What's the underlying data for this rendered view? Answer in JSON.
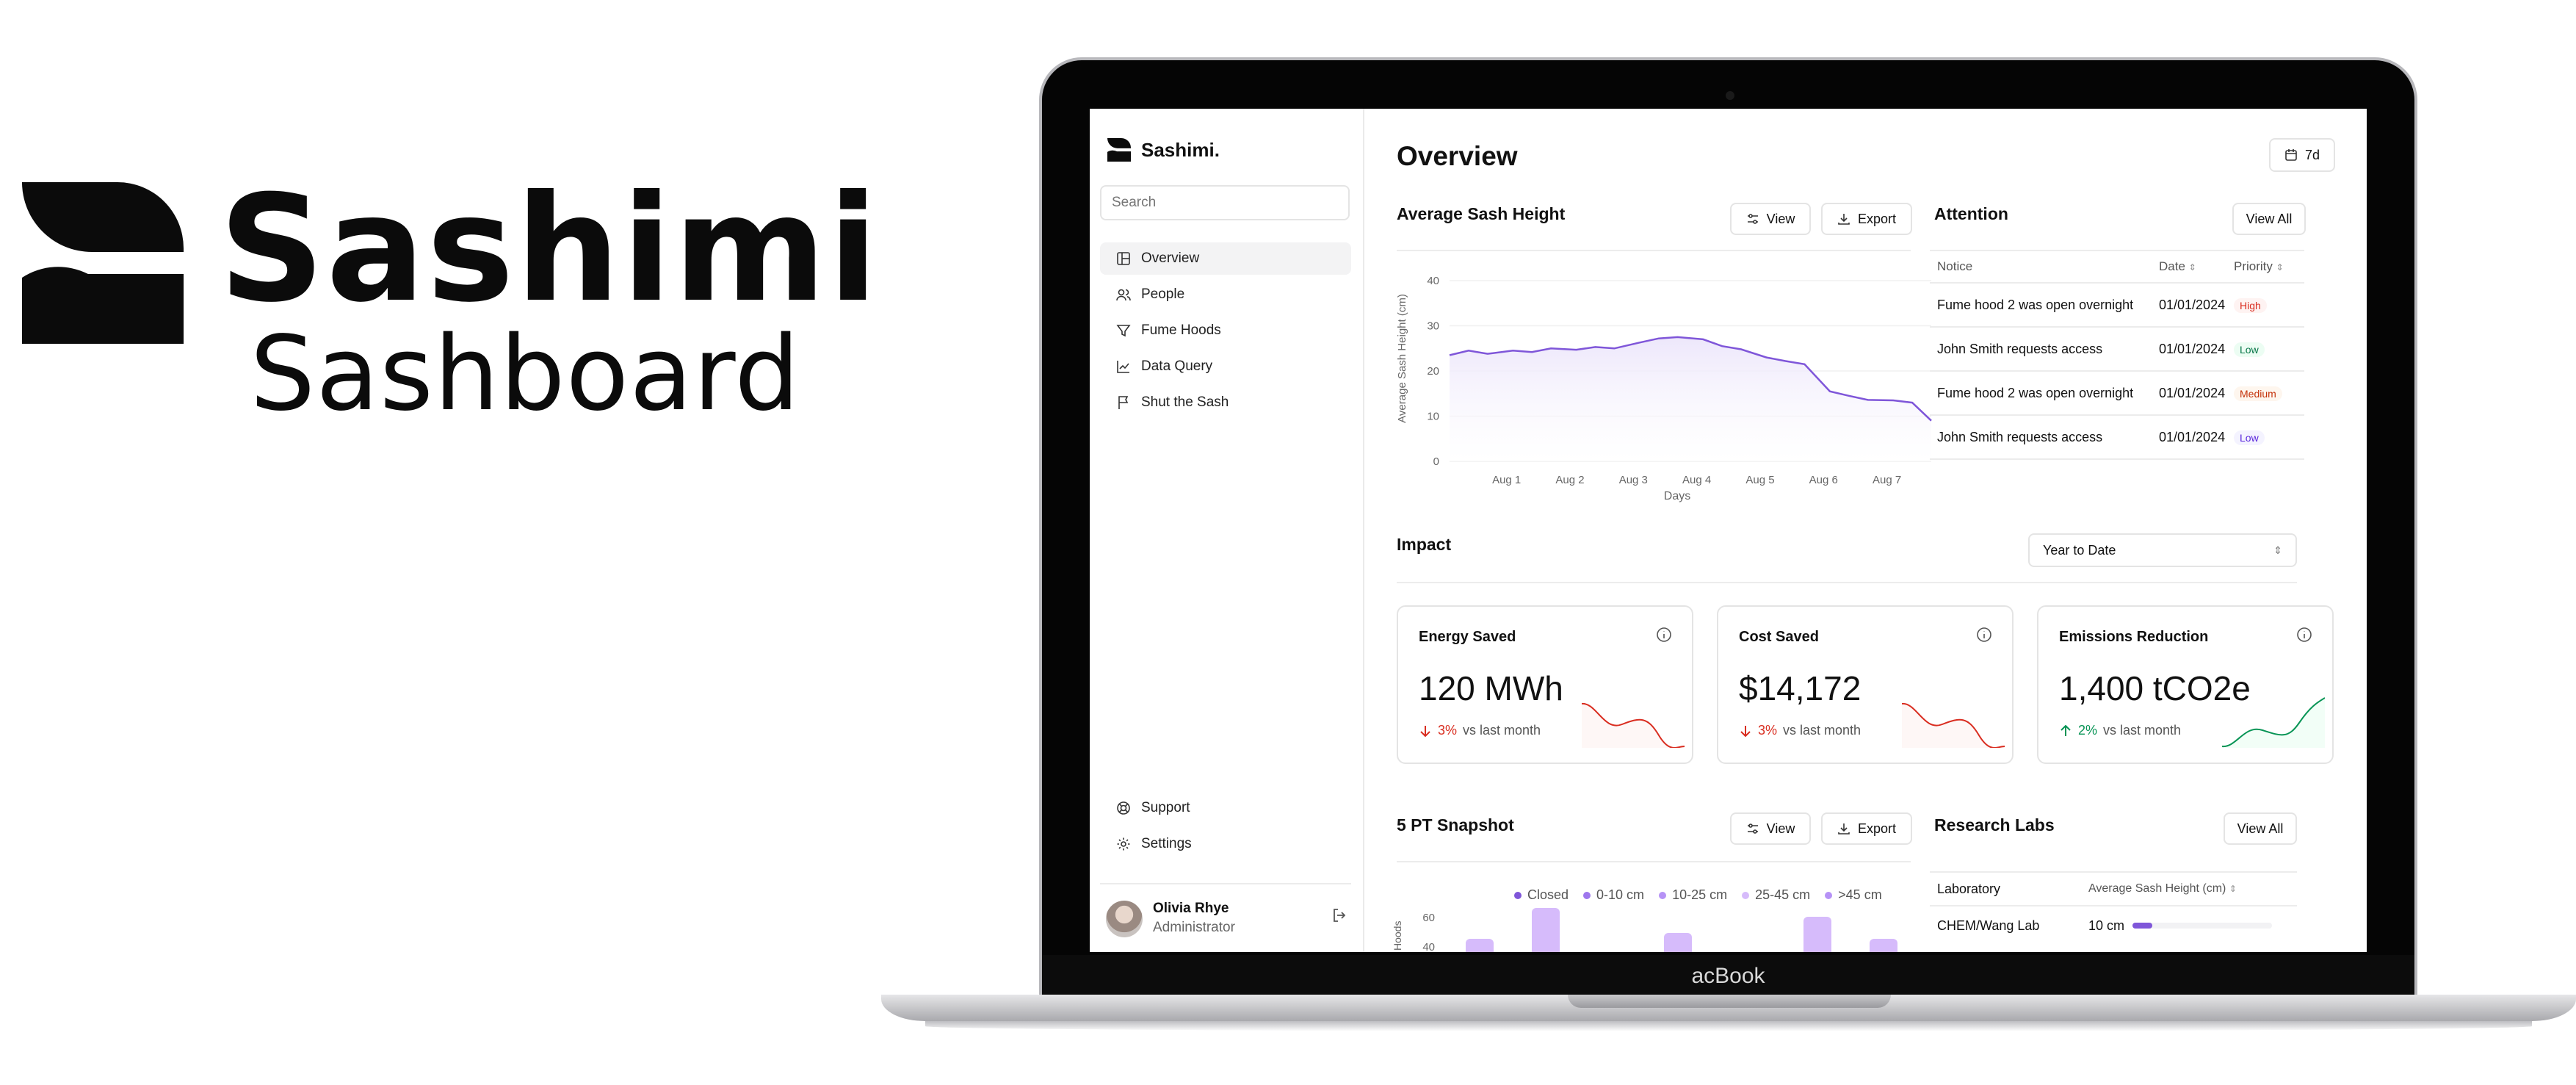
{
  "brand": {
    "title": "Sashimi",
    "subtitle": "Sashboard"
  },
  "laptop": {
    "label": "acBook"
  },
  "sidebar": {
    "app_name": "Sashimi.",
    "search_placeholder": "Search",
    "items": [
      {
        "label": "Overview",
        "icon": "layout-icon"
      },
      {
        "label": "People",
        "icon": "people-icon"
      },
      {
        "label": "Fume Hoods",
        "icon": "filter-icon"
      },
      {
        "label": "Data Query",
        "icon": "chart-line-icon"
      },
      {
        "label": "Shut the Sash",
        "icon": "flag-icon"
      }
    ],
    "bottom_items": [
      {
        "label": "Support",
        "icon": "lifebuoy-icon"
      },
      {
        "label": "Settings",
        "icon": "gear-icon"
      }
    ],
    "user": {
      "name": "Olivia Rhye",
      "role": "Administrator"
    }
  },
  "header": {
    "title": "Overview",
    "range_label": "7d"
  },
  "sash_chart": {
    "title": "Average Sash Height",
    "view_label": "View",
    "export_label": "Export"
  },
  "chart_data": {
    "type": "line",
    "title": "",
    "xlabel": "Days",
    "ylabel": "Average Sash Height (cm)",
    "ylim": [
      0,
      40
    ],
    "y_ticks": [
      0,
      10,
      20,
      30,
      40
    ],
    "categories": [
      "Aug 1",
      "Aug 2",
      "Aug 3",
      "Aug 4",
      "Aug 5",
      "Aug 6",
      "Aug 7"
    ],
    "x": [
      0.0,
      0.3,
      0.6,
      1.0,
      1.3,
      1.6,
      2.0,
      2.3,
      2.6,
      3.0,
      3.3,
      3.6,
      4.0,
      4.3,
      4.6,
      5.0,
      5.3,
      5.6,
      6.0,
      6.3,
      6.6,
      7.0,
      7.3,
      7.6
    ],
    "series": [
      {
        "values": [
          23.5,
          24.5,
          23.8,
          24.5,
          24.2,
          25,
          24.7,
          25.3,
          25,
          26.3,
          27.2,
          27.5,
          27,
          25.5,
          24.8,
          23,
          22.2,
          21.5,
          15.5,
          14.5,
          13.6,
          13.5,
          13,
          9
        ]
      }
    ]
  },
  "attention": {
    "title": "Attention",
    "view_all_label": "View All",
    "columns": [
      "Notice",
      "Date",
      "Priority"
    ],
    "rows": [
      {
        "notice": "Fume hood 2 was open overnight",
        "date": "01/01/2024",
        "priority": "High",
        "color": "#d92d20",
        "bg": "#fef3f2"
      },
      {
        "notice": "John Smith requests access",
        "date": "01/01/2024",
        "priority": "Low",
        "color": "#067647",
        "bg": "#ecfdf3"
      },
      {
        "notice": "Fume hood 2 was open overnight",
        "date": "01/01/2024",
        "priority": "Medium",
        "color": "#c4320a",
        "bg": "#fef6ee"
      },
      {
        "notice": "John Smith requests access",
        "date": "01/01/2024",
        "priority": "Low",
        "color": "#5925dc",
        "bg": "#f4f3ff"
      }
    ]
  },
  "impact": {
    "title": "Impact",
    "period": "Year to Date",
    "cards": [
      {
        "title": "Energy Saved",
        "value": "120 MWh",
        "delta": "3%",
        "delta_text": "vs last month",
        "trend": "down",
        "color": "#d92d20"
      },
      {
        "title": "Cost Saved",
        "value": "$14,172",
        "delta": "3%",
        "delta_text": "vs last month",
        "trend": "down",
        "color": "#d92d20"
      },
      {
        "title": "Emissions Reduction",
        "value": "1,400 tCO2e",
        "delta": "2%",
        "delta_text": "vs last month",
        "trend": "up",
        "color": "#079455"
      }
    ]
  },
  "snapshot": {
    "title": "5 PT Snapshot",
    "view_label": "View",
    "export_label": "Export",
    "ylabel": "Hoods",
    "legend": [
      {
        "label": "Closed",
        "color": "#7f56d9"
      },
      {
        "label": "0-10 cm",
        "color": "#9e77ed"
      },
      {
        "label": "10-25 cm",
        "color": "#b692f6"
      },
      {
        "label": "25-45 cm",
        "color": "#d6bbfb"
      },
      {
        "label": ">45 cm",
        "color": "#b692f6"
      }
    ],
    "y_ticks": [
      "60",
      "40"
    ]
  },
  "labs": {
    "title": "Research Labs",
    "view_all_label": "View All",
    "columns": [
      "Laboratory",
      "Average Sash Height (cm)"
    ],
    "rows": [
      {
        "lab": "CHEM/Wang Lab",
        "value": "10 cm",
        "fraction": 0.14
      }
    ]
  }
}
